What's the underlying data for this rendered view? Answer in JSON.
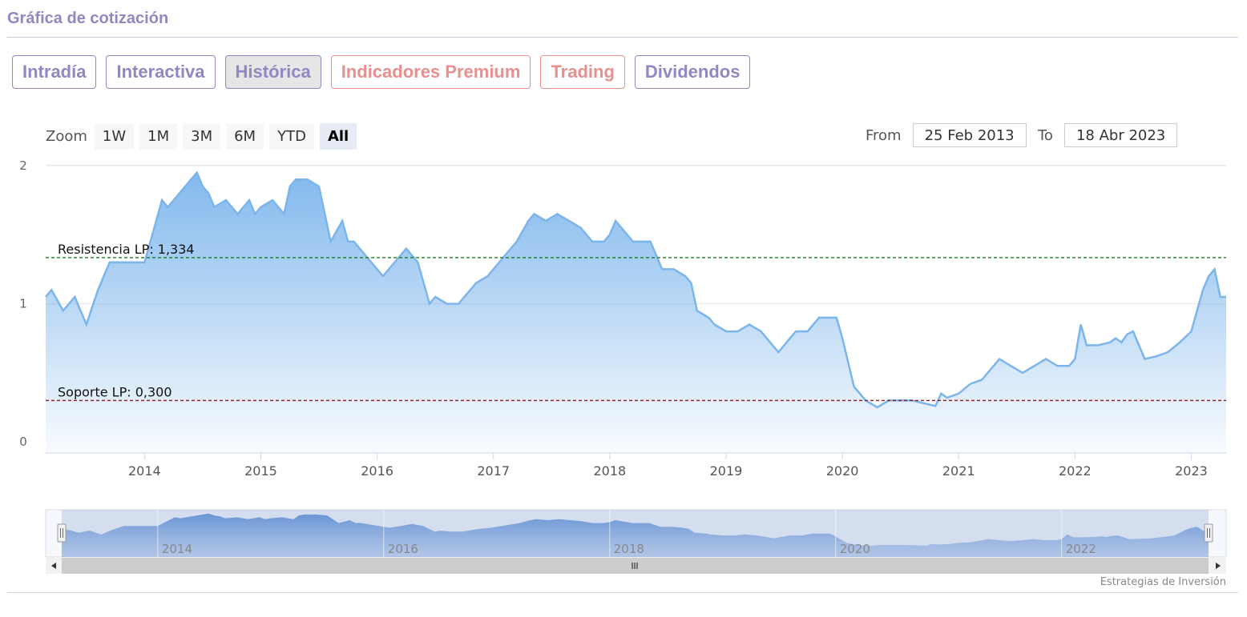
{
  "header": {
    "title": "Gráfica de cotización"
  },
  "tabs": [
    {
      "label": "Intradía",
      "style": "normal"
    },
    {
      "label": "Interactiva",
      "style": "normal"
    },
    {
      "label": "Histórica",
      "style": "active"
    },
    {
      "label": "Indicadores Premium",
      "style": "premium"
    },
    {
      "label": "Trading",
      "style": "premium"
    },
    {
      "label": "Dividendos",
      "style": "normal"
    }
  ],
  "zoom": {
    "label": "Zoom",
    "buttons": [
      "1W",
      "1M",
      "3M",
      "6M",
      "YTD",
      "All"
    ],
    "selected": "All"
  },
  "range": {
    "from_label": "From",
    "from_value": "25 Feb 2013",
    "to_label": "To",
    "to_value": "18 Abr 2023"
  },
  "navigator": {
    "labels": [
      "2014",
      "2016",
      "2018",
      "2020",
      "2022"
    ]
  },
  "credit": "Estrategias de Inversión",
  "colors": {
    "line": "#7cb5ec",
    "area_top": "#7cb5ec",
    "resistance": "#1a7a1a",
    "support": "#8b1a1a",
    "accent": "#9287c2",
    "premium": "#e6908f"
  },
  "chart_data": {
    "type": "area",
    "x_axis": {
      "ticks": [
        "2014",
        "2015",
        "2016",
        "2017",
        "2018",
        "2019",
        "2020",
        "2021",
        "2022",
        "2023"
      ],
      "range": [
        2013.15,
        2023.3
      ]
    },
    "y_axis": {
      "ticks": [
        "0",
        "1",
        "2"
      ],
      "range": [
        -0.08,
        2.0
      ]
    },
    "series": [
      {
        "x": [
          2013.15,
          2013.2,
          2013.3,
          2013.4,
          2013.5,
          2013.6,
          2013.7,
          2013.75,
          2013.85,
          2014.0,
          2014.1,
          2014.15,
          2014.2,
          2014.3,
          2014.35,
          2014.45,
          2014.5,
          2014.55,
          2014.6,
          2014.7,
          2014.8,
          2014.9,
          2014.95,
          2015.0,
          2015.1,
          2015.2,
          2015.25,
          2015.3,
          2015.4,
          2015.5,
          2015.55,
          2015.6,
          2015.7,
          2015.75,
          2015.8,
          2015.9,
          2016.0,
          2016.05,
          2016.15,
          2016.25,
          2016.35,
          2016.45,
          2016.5,
          2016.6,
          2016.7,
          2016.75,
          2016.85,
          2016.95,
          2017.0,
          2017.1,
          2017.2,
          2017.3,
          2017.35,
          2017.45,
          2017.55,
          2017.65,
          2017.75,
          2017.85,
          2017.95,
          2018.0,
          2018.05,
          2018.15,
          2018.2,
          2018.3,
          2018.35,
          2018.45,
          2018.55,
          2018.65,
          2018.7,
          2018.75,
          2018.85,
          2018.9,
          2019.0,
          2019.1,
          2019.2,
          2019.3,
          2019.4,
          2019.45,
          2019.55,
          2019.6,
          2019.7,
          2019.8,
          2019.85,
          2019.95,
          2020.0,
          2020.1,
          2020.15,
          2020.2,
          2020.3,
          2020.4,
          2020.5,
          2020.6,
          2020.7,
          2020.8,
          2020.85,
          2020.9,
          2021.0,
          2021.1,
          2021.2,
          2021.3,
          2021.35,
          2021.45,
          2021.55,
          2021.65,
          2021.75,
          2021.85,
          2021.95,
          2022.0,
          2022.05,
          2022.1,
          2022.2,
          2022.3,
          2022.35,
          2022.4,
          2022.45,
          2022.5,
          2022.6,
          2022.7,
          2022.8,
          2022.9,
          2023.0,
          2023.05,
          2023.1,
          2023.15,
          2023.2,
          2023.25,
          2023.3
        ],
        "y": [
          1.05,
          1.1,
          0.95,
          1.05,
          0.85,
          1.1,
          1.3,
          1.3,
          1.3,
          1.3,
          1.6,
          1.75,
          1.7,
          1.8,
          1.85,
          1.95,
          1.85,
          1.8,
          1.7,
          1.75,
          1.65,
          1.75,
          1.65,
          1.7,
          1.75,
          1.65,
          1.85,
          1.9,
          1.9,
          1.85,
          1.65,
          1.45,
          1.6,
          1.45,
          1.45,
          1.35,
          1.25,
          1.2,
          1.3,
          1.4,
          1.3,
          1.0,
          1.05,
          1.0,
          1.0,
          1.05,
          1.15,
          1.2,
          1.25,
          1.35,
          1.45,
          1.6,
          1.65,
          1.6,
          1.65,
          1.6,
          1.55,
          1.45,
          1.45,
          1.5,
          1.6,
          1.5,
          1.45,
          1.45,
          1.45,
          1.25,
          1.25,
          1.2,
          1.15,
          0.95,
          0.9,
          0.85,
          0.8,
          0.8,
          0.85,
          0.8,
          0.7,
          0.65,
          0.75,
          0.8,
          0.8,
          0.9,
          0.9,
          0.9,
          0.75,
          0.4,
          0.35,
          0.3,
          0.25,
          0.3,
          0.3,
          0.3,
          0.28,
          0.26,
          0.35,
          0.32,
          0.35,
          0.42,
          0.45,
          0.55,
          0.6,
          0.55,
          0.5,
          0.55,
          0.6,
          0.55,
          0.55,
          0.6,
          0.85,
          0.7,
          0.7,
          0.72,
          0.75,
          0.72,
          0.78,
          0.8,
          0.6,
          0.62,
          0.65,
          0.72,
          0.8,
          0.95,
          1.1,
          1.2,
          1.25,
          1.05,
          1.05
        ]
      }
    ],
    "annotations": [
      {
        "label": "Resistencia LP: 1,334",
        "value": 1.334,
        "style": "dashed"
      },
      {
        "label": "Soporte LP: 0,300",
        "value": 0.3,
        "style": "dashed"
      }
    ]
  }
}
